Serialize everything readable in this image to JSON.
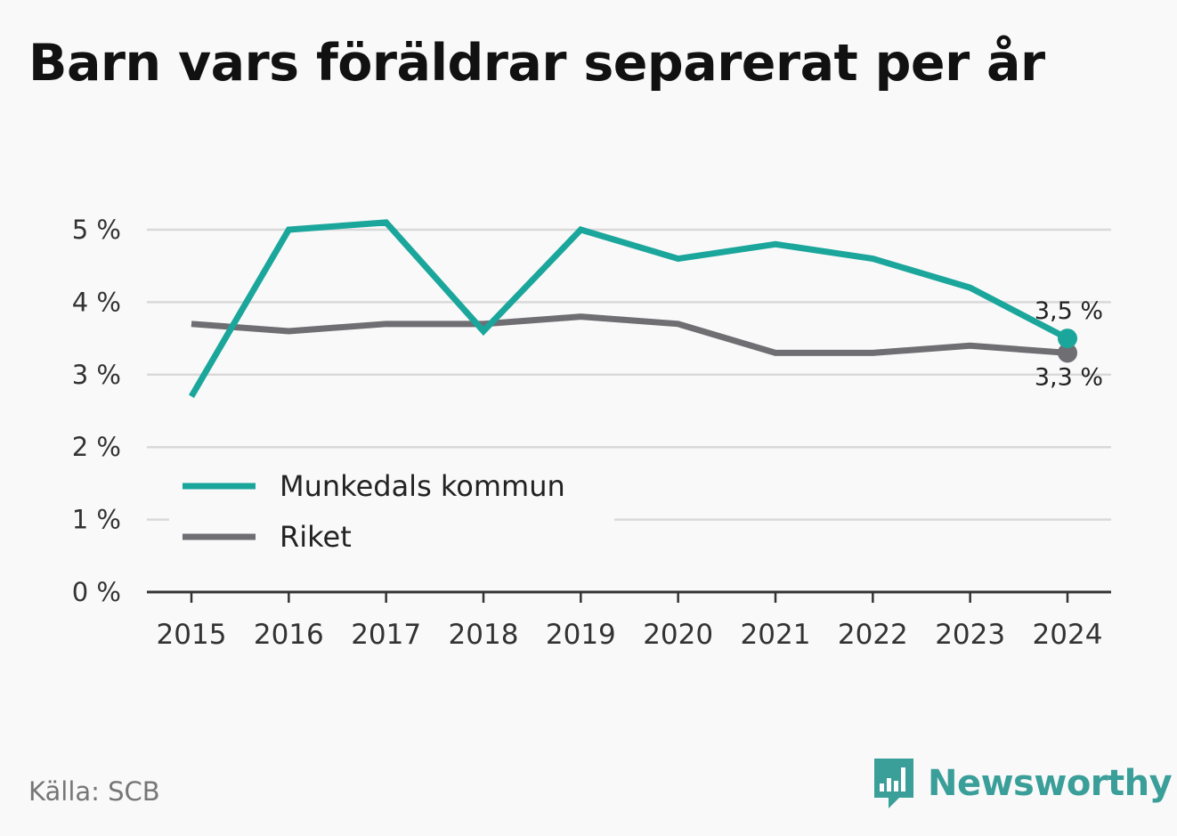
{
  "title": "Barn vars föräldrar separerat per år",
  "source": "Källa: SCB",
  "brand": {
    "name": "Newsworthy",
    "icon": "newsworthy-logo-icon",
    "color": "#3a9e99"
  },
  "chart_data": {
    "type": "line",
    "title": "Barn vars föräldrar separerat per år",
    "x": [
      "2015",
      "2016",
      "2017",
      "2018",
      "2019",
      "2020",
      "2021",
      "2022",
      "2023",
      "2024"
    ],
    "ylim": [
      0,
      5
    ],
    "yticks": [
      "0 %",
      "1 %",
      "2 %",
      "3 %",
      "4 %",
      "5 %"
    ],
    "grid": true,
    "legend_position": "bottom-left",
    "series": [
      {
        "name": "Munkedals kommun",
        "color": "#1ba69c",
        "values": [
          2.7,
          5.0,
          5.1,
          3.6,
          5.0,
          4.6,
          4.8,
          4.6,
          4.2,
          3.5
        ],
        "end_label": "3,5 %"
      },
      {
        "name": "Riket",
        "color": "#6e6e73",
        "values": [
          3.7,
          3.6,
          3.7,
          3.7,
          3.8,
          3.7,
          3.3,
          3.3,
          3.4,
          3.3
        ],
        "end_label": "3,3 %"
      }
    ]
  }
}
